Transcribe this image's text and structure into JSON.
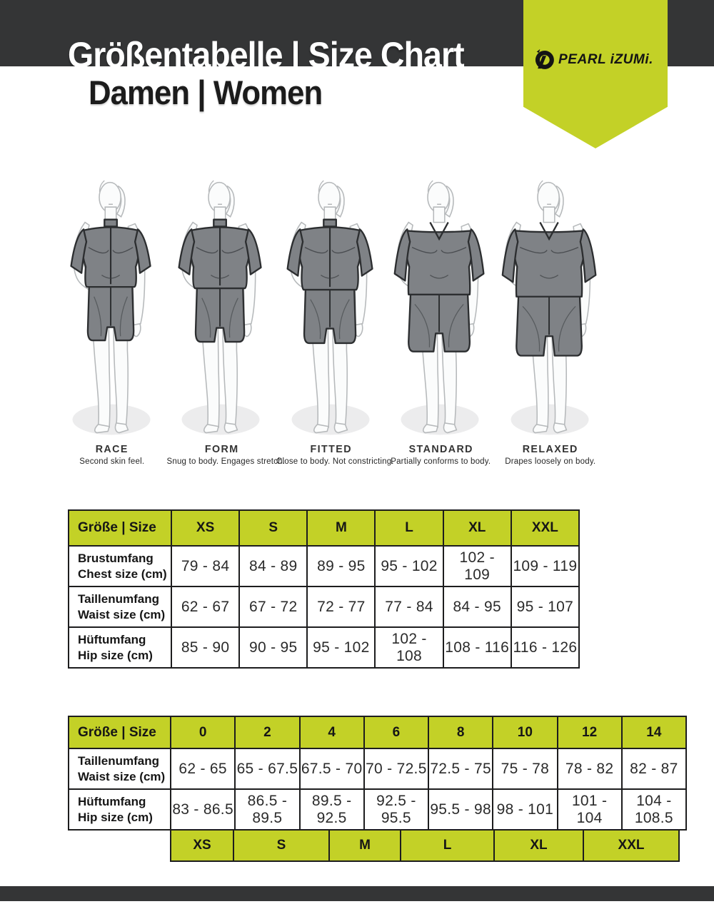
{
  "page": {
    "title": "Größentabelle | Size Chart",
    "subtitle": "Damen | Women",
    "brand": "PEARL iZUMi.",
    "accent_color": "#c3d127",
    "bar_color": "#343536"
  },
  "fits": [
    {
      "name": "RACE",
      "description": "Second skin feel.",
      "garment": "zip-jersey",
      "looseness": 0
    },
    {
      "name": "FORM",
      "description": "Snug to body. Engages stretch.",
      "garment": "zip-jersey",
      "looseness": 1
    },
    {
      "name": "FITTED",
      "description": "Close to body. Not constricting.",
      "garment": "zip-jersey",
      "looseness": 2
    },
    {
      "name": "STANDARD",
      "description": "Partially conforms to body.",
      "garment": "vneck-tee",
      "looseness": 3
    },
    {
      "name": "RELAXED",
      "description": "Drapes loosely on body.",
      "garment": "vneck-tee",
      "looseness": 4
    }
  ],
  "size_table_letters": {
    "corner_label": "Größe | Size",
    "columns": [
      "XS",
      "S",
      "M",
      "L",
      "XL",
      "XXL"
    ],
    "rows": [
      {
        "label_de": "Brustumfang",
        "label_en": "Chest size (cm)",
        "values": [
          "79 - 84",
          "84 - 89",
          "89 - 95",
          "95 - 102",
          "102 - 109",
          "109 - 119"
        ]
      },
      {
        "label_de": "Taillenumfang",
        "label_en": "Waist size (cm)",
        "values": [
          "62 - 67",
          "67 - 72",
          "72 - 77",
          "77 - 84",
          "84 - 95",
          "95 - 107"
        ]
      },
      {
        "label_de": "Hüftumfang",
        "label_en": "Hip size (cm)",
        "values": [
          "85 - 90",
          "90 - 95",
          "95 - 102",
          "102 - 108",
          "108 - 116",
          "116 - 126"
        ]
      }
    ]
  },
  "size_table_numeric": {
    "corner_label": "Größe | Size",
    "columns": [
      "0",
      "2",
      "4",
      "6",
      "8",
      "10",
      "12",
      "14"
    ],
    "rows": [
      {
        "label_de": "Taillenumfang",
        "label_en": "Waist size (cm)",
        "values": [
          "62 - 65",
          "65 - 67.5",
          "67.5 - 70",
          "70 - 72.5",
          "72.5 - 75",
          "75 - 78",
          "78 - 82",
          "82 - 87"
        ]
      },
      {
        "label_de": "Hüftumfang",
        "label_en": "Hip size (cm)",
        "values": [
          "83 - 86.5",
          "86.5 - 89.5",
          "89.5 - 92.5",
          "92.5 - 95.5",
          "95.5 - 98",
          "98 - 101",
          "101 - 104",
          "104 - 108.5"
        ]
      }
    ],
    "letter_equivalents": [
      "XS",
      "S",
      "M",
      "L",
      "XL",
      "XXL"
    ]
  }
}
